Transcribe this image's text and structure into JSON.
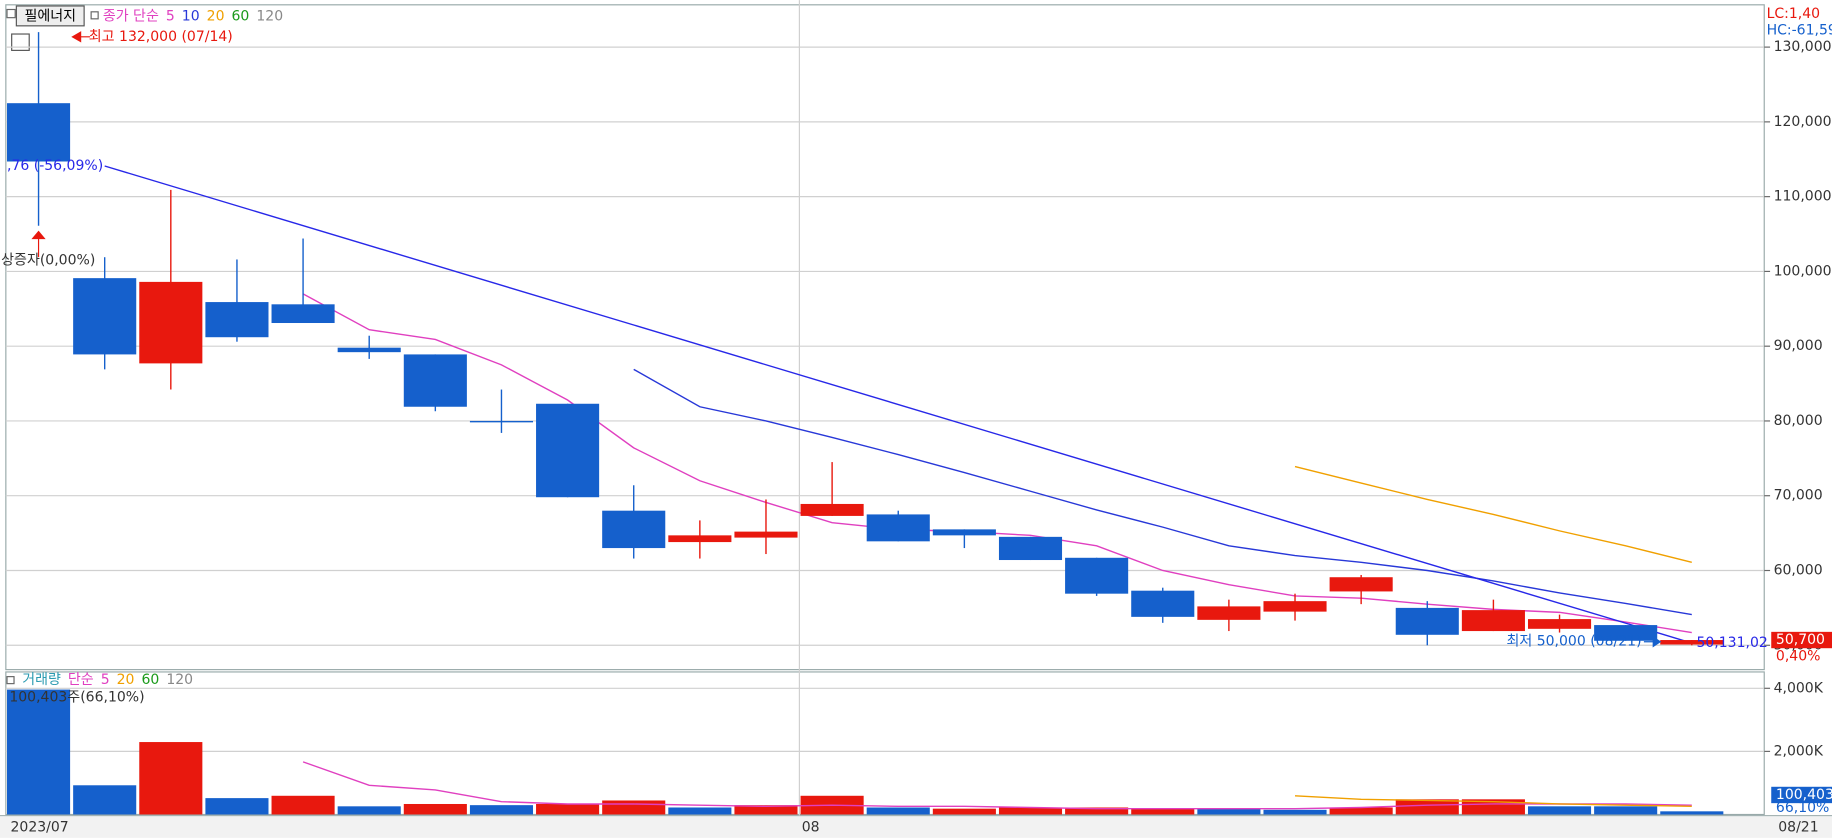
{
  "chart_data": [
    {
      "type": "candlestick",
      "title": "필에너지",
      "legend_title": "종가 단순",
      "categories": [
        "2023/07",
        null,
        null,
        null,
        null,
        null,
        null,
        null,
        null,
        null,
        null,
        null,
        "08",
        null,
        null,
        null,
        null,
        null,
        null,
        null,
        null,
        null,
        null,
        null,
        null,
        "08/21"
      ],
      "open": [
        122500,
        99100,
        87700,
        95900,
        95600,
        89800,
        88900,
        80000,
        82300,
        68000,
        63800,
        64400,
        67300,
        67500,
        65500,
        64500,
        61700,
        57300,
        53400,
        54500,
        57200,
        55000,
        51900,
        52200,
        52700,
        50100
      ],
      "high": [
        132000,
        101900,
        110900,
        101600,
        104400,
        91400,
        88900,
        84200,
        82300,
        71400,
        66700,
        69500,
        74500,
        68000,
        65500,
        64500,
        61700,
        57700,
        56100,
        56900,
        59400,
        55900,
        56100,
        54100,
        52700,
        50700
      ],
      "low": [
        106100,
        86900,
        84200,
        90600,
        93100,
        88300,
        81300,
        78400,
        69800,
        61600,
        61600,
        62200,
        67300,
        63900,
        63000,
        61400,
        56600,
        53000,
        51900,
        53300,
        55500,
        50000,
        51900,
        51700,
        50600,
        50000
      ],
      "close": [
        114700,
        88900,
        98600,
        91200,
        93100,
        89200,
        81900,
        80000,
        69800,
        63000,
        64700,
        65200,
        68900,
        63900,
        64700,
        61400,
        56900,
        53800,
        55200,
        55900,
        59100,
        51400,
        54700,
        53500,
        50600,
        50700
      ],
      "up_color": "#e8180e",
      "down_color": "#1560cc",
      "series": [
        {
          "name": "5",
          "color": "#e040c0",
          "values": [
            null,
            null,
            null,
            null,
            97000,
            92200,
            90900,
            87500,
            82800,
            76400,
            72000,
            69100,
            66400,
            65500,
            65200,
            64700,
            63300,
            60000,
            58100,
            56600,
            56300,
            55500,
            54800,
            54400,
            53100,
            51700
          ]
        },
        {
          "name": "10",
          "color": "#2838d8",
          "values": [
            null,
            null,
            null,
            null,
            null,
            null,
            null,
            null,
            null,
            86900,
            81900,
            80000,
            77800,
            75500,
            73100,
            70600,
            68100,
            65800,
            63300,
            62000,
            61100,
            60000,
            58600,
            57000,
            55600,
            54100
          ]
        },
        {
          "name": "20",
          "color": "#f0a000",
          "values": [
            null,
            null,
            null,
            null,
            null,
            null,
            null,
            null,
            null,
            null,
            null,
            null,
            null,
            null,
            null,
            null,
            null,
            null,
            null,
            73900,
            71700,
            69500,
            67500,
            65300,
            63300,
            61100
          ]
        },
        {
          "name": "60",
          "color": "#1a9a1a",
          "values": [
            null,
            null,
            null,
            null,
            null,
            null,
            null,
            null,
            null,
            null,
            null,
            null,
            null,
            null,
            null,
            null,
            null,
            null,
            null,
            null,
            null,
            null,
            null,
            null,
            null,
            null
          ]
        },
        {
          "name": "120",
          "color": "#888888",
          "values": [
            null,
            null,
            null,
            null,
            null,
            null,
            null,
            null,
            null,
            null,
            null,
            null,
            null,
            null,
            null,
            null,
            null,
            null,
            null,
            null,
            null,
            null,
            null,
            null,
            null,
            null
          ]
        }
      ],
      "trend_line": {
        "x": [
          1,
          25
        ],
        "values": [
          114100,
          50300
        ],
        "color": "#2828e8",
        "label": ",76 (-56,09%)",
        "end_label": "50,131,02"
      },
      "high_label": "최고 132,000 (07/14)",
      "low_label": "최저 50,000 (08/21)",
      "event_label": "상증자(0,00%)",
      "lc_label": "LC:1,40",
      "hc_label": "HC:-61,59",
      "last_price": "50,700",
      "last_change": "0,40%",
      "ylim": [
        46900,
        135500
      ],
      "yticks": [
        {
          "value": 50000,
          "label": "50,000"
        },
        {
          "value": 60000,
          "label": "60,000"
        },
        {
          "value": 70000,
          "label": "70,000"
        },
        {
          "value": 80000,
          "label": "80,000"
        },
        {
          "value": 90000,
          "label": "90,000"
        },
        {
          "value": 100000,
          "label": "100,000"
        },
        {
          "value": 110000,
          "label": "110,000"
        },
        {
          "value": 120000,
          "label": "120,000"
        },
        {
          "value": 130000,
          "label": "130,000"
        }
      ],
      "grid": true
    },
    {
      "type": "bar",
      "legend_title": "거래량",
      "legend_sub": "단순",
      "values": [
        3960,
        926,
        2296,
        519,
        593,
        259,
        333,
        296,
        333,
        444,
        222,
        296,
        593,
        222,
        185,
        222,
        222,
        185,
        185,
        148,
        222,
        481,
        481,
        259,
        259,
        100.403
      ],
      "colors": [
        "#1560cc",
        "#1560cc",
        "#e8180e",
        "#1560cc",
        "#e8180e",
        "#1560cc",
        "#e8180e",
        "#1560cc",
        "#e8180e",
        "#e8180e",
        "#1560cc",
        "#e8180e",
        "#e8180e",
        "#1560cc",
        "#e8180e",
        "#e8180e",
        "#e8180e",
        "#e8180e",
        "#1560cc",
        "#1560cc",
        "#e8180e",
        "#e8180e",
        "#e8180e",
        "#1560cc",
        "#1560cc",
        "#1560cc"
      ],
      "series": [
        {
          "name": "5",
          "color": "#e040c0",
          "values": [
            null,
            null,
            null,
            null,
            1667,
            926,
            778,
            407,
            333,
            333,
            296,
            259,
            296,
            259,
            259,
            222,
            185,
            185,
            185,
            185,
            222,
            296,
            333,
            333,
            333,
            296
          ]
        },
        {
          "name": "20",
          "color": "#f0a000",
          "values": [
            null,
            null,
            null,
            null,
            null,
            null,
            null,
            null,
            null,
            null,
            null,
            null,
            null,
            null,
            null,
            null,
            null,
            null,
            null,
            593,
            481,
            444,
            407,
            333,
            296,
            259
          ]
        },
        {
          "name": "60",
          "color": "#1a9a1a",
          "values": [
            null,
            null,
            null,
            null,
            null,
            null,
            null,
            null,
            null,
            null,
            null,
            null,
            null,
            null,
            null,
            null,
            null,
            null,
            null,
            null,
            null,
            null,
            null,
            null,
            null,
            null
          ]
        },
        {
          "name": "120",
          "color": "#888888",
          "values": [
            null,
            null,
            null,
            null,
            null,
            null,
            null,
            null,
            null,
            null,
            null,
            null,
            null,
            null,
            null,
            null,
            null,
            null,
            null,
            null,
            null,
            null,
            null,
            null,
            null,
            null
          ]
        }
      ],
      "volume_label": "100,403주(66,10%)",
      "last_value": "100,403",
      "last_change": "66,10%",
      "ylim": [
        0,
        4481
      ],
      "yticks": [
        {
          "value": 2000,
          "label": "2,000K"
        },
        {
          "value": 4000,
          "label": "4,000K"
        }
      ],
      "grid": true
    }
  ]
}
